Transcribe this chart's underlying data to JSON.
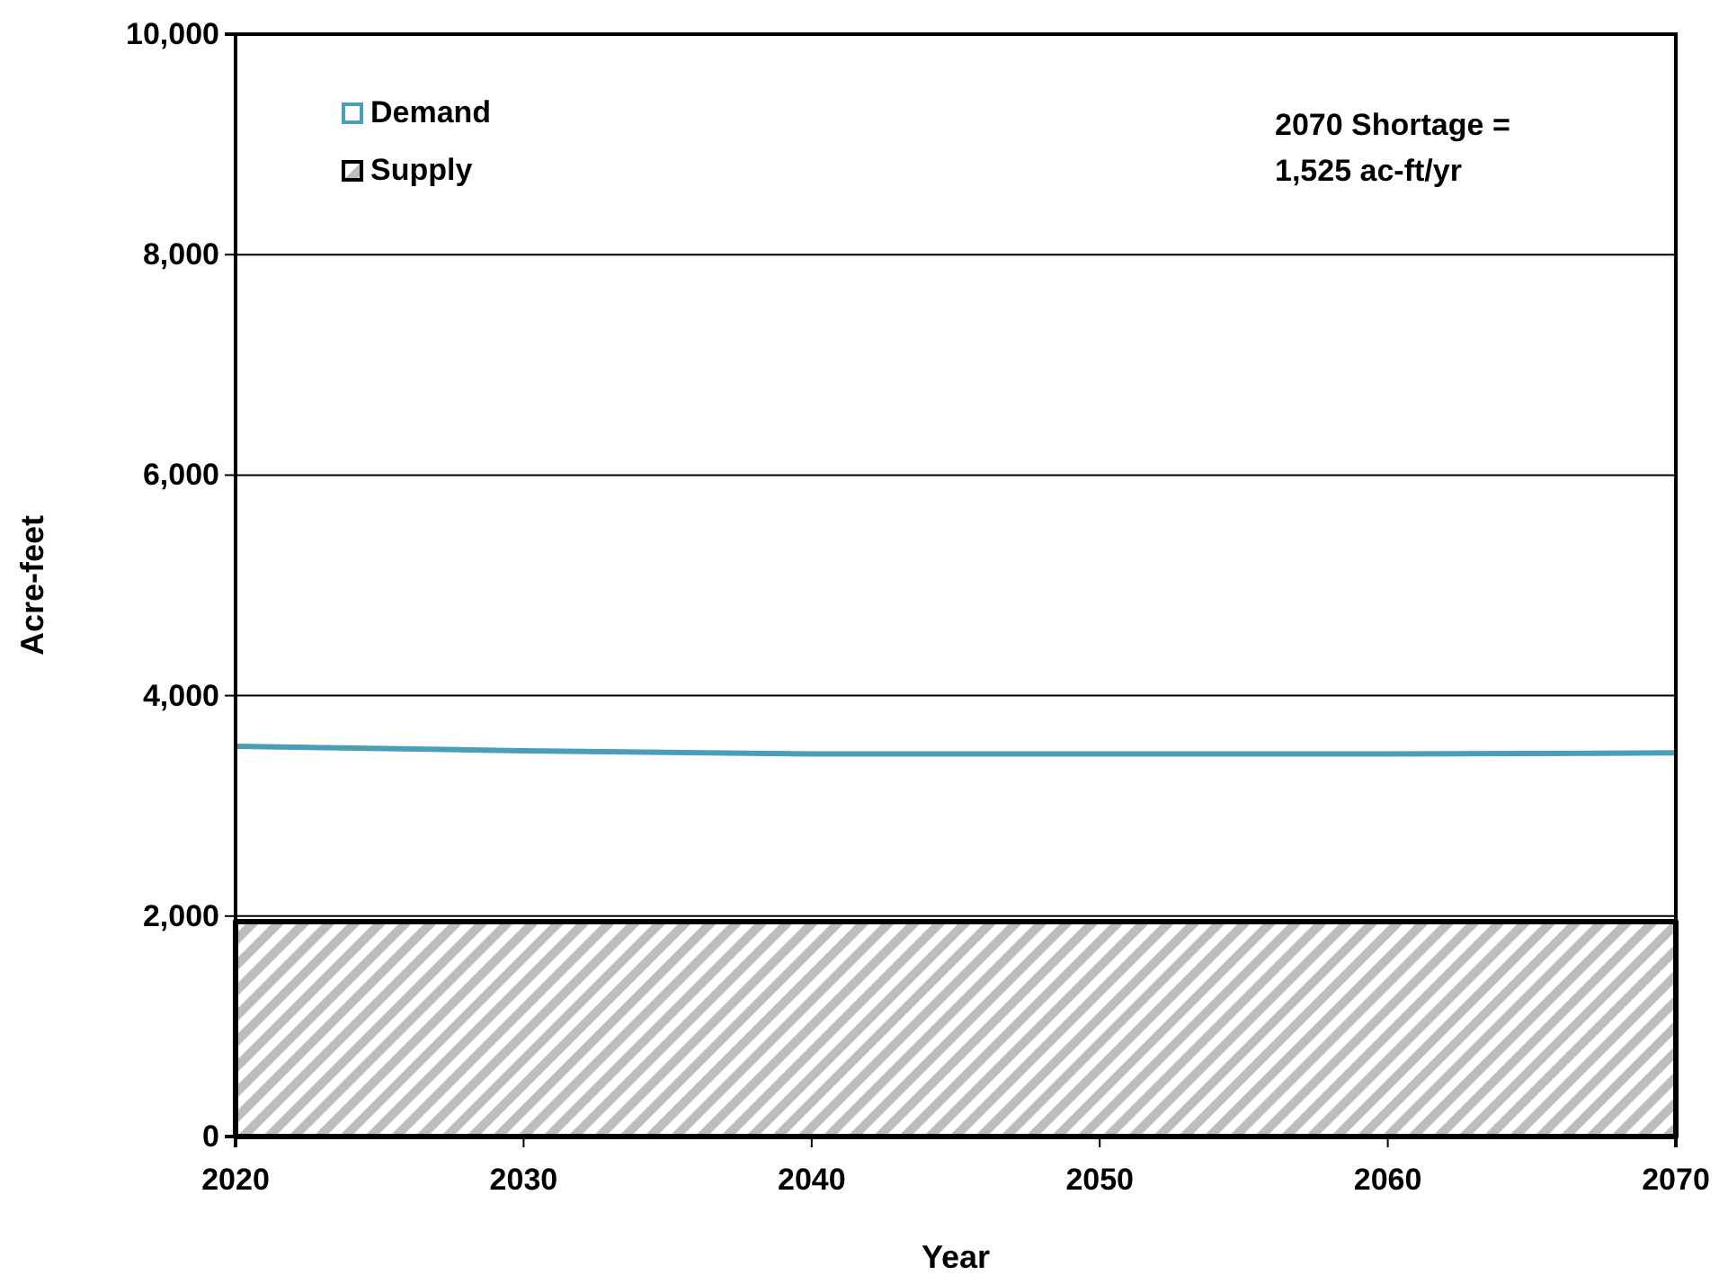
{
  "chart_data": {
    "type": "area",
    "xlabel": "Year",
    "ylabel": "Acre-feet",
    "x": [
      2020,
      2030,
      2040,
      2050,
      2060,
      2070
    ],
    "series": [
      {
        "name": "Demand",
        "type": "line",
        "color": "#4a9fb8",
        "values": [
          3540,
          3500,
          3470,
          3470,
          3470,
          3480
        ]
      },
      {
        "name": "Supply",
        "color": "#000000",
        "values": [
          1950,
          1950,
          1950,
          1950,
          1950,
          1950
        ]
      }
    ],
    "xlim": [
      2020,
      2070
    ],
    "xticks": [
      2020,
      2030,
      2040,
      2050,
      2060,
      2070
    ],
    "ylim": [
      0,
      10000
    ],
    "yticks": [
      {
        "value": 0,
        "label": "0"
      },
      {
        "value": 2000,
        "label": "2,000"
      },
      {
        "value": 4000,
        "label": "4,000"
      },
      {
        "value": 6000,
        "label": "6,000"
      },
      {
        "value": 8000,
        "label": "8,000"
      },
      {
        "value": 10000,
        "label": "10,000"
      }
    ],
    "grid": "y",
    "legend": "top left",
    "annotations": [
      "2070 Shortage =\n1,525 ac-ft/yr"
    ]
  }
}
